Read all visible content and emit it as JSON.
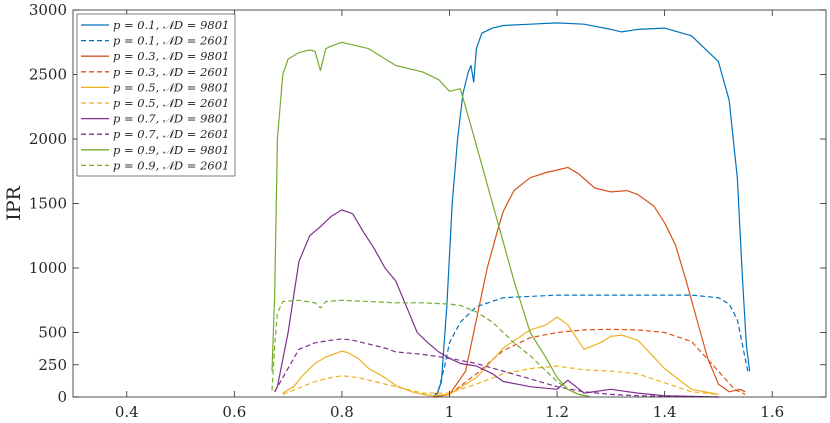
{
  "chart_data": {
    "type": "line",
    "title": "",
    "xlabel": "",
    "ylabel": "IPR",
    "xlim": [
      0.3,
      1.7
    ],
    "ylim": [
      0,
      3000
    ],
    "x_ticks": [
      0.4,
      0.6,
      0.8,
      1.0,
      1.2,
      1.4,
      1.6
    ],
    "x_tick_labels": [
      "0.4",
      "0.6",
      "0.8",
      "1",
      "1.2",
      "1.4",
      "1.6"
    ],
    "y_ticks": [
      0,
      250,
      500,
      1000,
      1500,
      2000,
      2500,
      3000
    ],
    "y_tick_labels": [
      "0",
      "250",
      "500",
      "1000",
      "1500",
      "2000",
      "2500",
      "3000"
    ],
    "grid": false,
    "legend_position": "top-left",
    "series": [
      {
        "name": "p = 0.1, 𝒩D = 9801",
        "color": "#0072BD",
        "dash": "solid",
        "x": [
          0.975,
          0.985,
          0.995,
          1.005,
          1.015,
          1.025,
          1.035,
          1.04,
          1.045,
          1.05,
          1.06,
          1.08,
          1.1,
          1.15,
          1.2,
          1.25,
          1.3,
          1.32,
          1.35,
          1.4,
          1.45,
          1.5,
          1.52,
          1.535,
          1.545,
          1.552,
          1.558
        ],
        "y": [
          0,
          120,
          700,
          1500,
          2000,
          2350,
          2520,
          2570,
          2440,
          2700,
          2820,
          2860,
          2880,
          2890,
          2900,
          2890,
          2850,
          2830,
          2850,
          2860,
          2800,
          2600,
          2300,
          1700,
          900,
          400,
          200
        ]
      },
      {
        "name": "p = 0.1, 𝒩D = 2601",
        "color": "#0072BD",
        "dash": "dashed",
        "x": [
          0.97,
          0.98,
          0.99,
          1.0,
          1.02,
          1.05,
          1.1,
          1.2,
          1.3,
          1.4,
          1.45,
          1.5,
          1.52,
          1.535,
          1.545,
          1.552,
          1.556
        ],
        "y": [
          0,
          60,
          220,
          420,
          580,
          700,
          770,
          790,
          790,
          790,
          790,
          770,
          720,
          600,
          400,
          250,
          180
        ]
      },
      {
        "name": "p = 0.3, 𝒩D = 9801",
        "color": "#D95319",
        "dash": "solid",
        "x": [
          0.97,
          1.0,
          1.03,
          1.05,
          1.07,
          1.09,
          1.1,
          1.12,
          1.15,
          1.18,
          1.2,
          1.22,
          1.24,
          1.27,
          1.3,
          1.33,
          1.35,
          1.38,
          1.4,
          1.42,
          1.44,
          1.46,
          1.48,
          1.5,
          1.52,
          1.54,
          1.55
        ],
        "y": [
          0,
          20,
          200,
          600,
          1000,
          1300,
          1440,
          1600,
          1700,
          1740,
          1760,
          1780,
          1730,
          1620,
          1590,
          1600,
          1570,
          1480,
          1350,
          1180,
          900,
          600,
          300,
          100,
          40,
          60,
          40
        ]
      },
      {
        "name": "p = 0.3, 𝒩D = 2601",
        "color": "#D95319",
        "dash": "dashed",
        "x": [
          0.97,
          1.0,
          1.05,
          1.08,
          1.1,
          1.15,
          1.2,
          1.25,
          1.3,
          1.35,
          1.4,
          1.45,
          1.5,
          1.53,
          1.55
        ],
        "y": [
          0,
          20,
          180,
          290,
          360,
          460,
          500,
          520,
          525,
          520,
          500,
          430,
          200,
          60,
          20
        ]
      },
      {
        "name": "p = 0.5, 𝒩D = 9801",
        "color": "#EDB120",
        "dash": "solid",
        "x": [
          0.69,
          0.71,
          0.73,
          0.75,
          0.77,
          0.79,
          0.8,
          0.81,
          0.83,
          0.85,
          0.88,
          0.9,
          0.93,
          0.95,
          0.97,
          1.0,
          1.05,
          1.1,
          1.15,
          1.18,
          1.2,
          1.22,
          1.25,
          1.28,
          1.3,
          1.32,
          1.35,
          1.4,
          1.45,
          1.5
        ],
        "y": [
          30,
          80,
          180,
          260,
          310,
          340,
          355,
          345,
          300,
          220,
          150,
          90,
          40,
          20,
          10,
          20,
          150,
          380,
          520,
          560,
          620,
          560,
          370,
          420,
          470,
          480,
          440,
          220,
          60,
          20
        ]
      },
      {
        "name": "p = 0.5, 𝒩D = 2601",
        "color": "#EDB120",
        "dash": "dashed",
        "x": [
          0.69,
          0.72,
          0.75,
          0.78,
          0.8,
          0.83,
          0.86,
          0.9,
          0.95,
          1.0,
          1.05,
          1.1,
          1.15,
          1.2,
          1.25,
          1.3,
          1.35,
          1.4,
          1.45,
          1.5
        ],
        "y": [
          20,
          70,
          120,
          150,
          165,
          150,
          120,
          80,
          30,
          30,
          100,
          180,
          220,
          240,
          210,
          200,
          180,
          110,
          40,
          20
        ]
      },
      {
        "name": "p = 0.7, 𝒩D = 9801",
        "color": "#7E2F8E",
        "dash": "solid",
        "x": [
          0.675,
          0.68,
          0.7,
          0.72,
          0.74,
          0.76,
          0.78,
          0.8,
          0.82,
          0.84,
          0.86,
          0.88,
          0.9,
          0.92,
          0.94,
          0.96,
          0.98,
          1.0,
          1.02,
          1.05,
          1.08,
          1.1,
          1.15,
          1.2,
          1.22,
          1.25,
          1.3,
          1.35,
          1.4,
          1.5
        ],
        "y": [
          40,
          80,
          500,
          1050,
          1250,
          1320,
          1400,
          1450,
          1420,
          1280,
          1150,
          1000,
          900,
          700,
          500,
          420,
          350,
          300,
          260,
          240,
          180,
          120,
          80,
          60,
          130,
          30,
          60,
          30,
          10,
          0
        ]
      },
      {
        "name": "p = 0.7, 𝒩D = 2601",
        "color": "#7E2F8E",
        "dash": "dashed",
        "x": [
          0.675,
          0.69,
          0.72,
          0.75,
          0.78,
          0.8,
          0.82,
          0.85,
          0.88,
          0.9,
          0.95,
          1.0,
          1.05,
          1.1,
          1.15,
          1.2,
          1.25,
          1.3,
          1.35,
          1.4,
          1.5
        ],
        "y": [
          40,
          150,
          370,
          420,
          440,
          450,
          440,
          410,
          380,
          350,
          330,
          300,
          260,
          200,
          140,
          80,
          40,
          20,
          10,
          5,
          0
        ]
      },
      {
        "name": "p = 0.9, 𝒩D = 9801",
        "color": "#77AC30",
        "dash": "solid",
        "x": [
          0.67,
          0.675,
          0.68,
          0.69,
          0.7,
          0.72,
          0.74,
          0.75,
          0.76,
          0.77,
          0.78,
          0.8,
          0.85,
          0.9,
          0.95,
          0.98,
          1.0,
          1.02,
          1.04,
          1.06,
          1.08,
          1.1,
          1.12,
          1.15,
          1.18,
          1.2,
          1.22,
          1.24,
          1.26
        ],
        "y": [
          200,
          800,
          2000,
          2500,
          2620,
          2670,
          2690,
          2680,
          2530,
          2700,
          2720,
          2750,
          2700,
          2570,
          2520,
          2460,
          2370,
          2390,
          2100,
          1800,
          1500,
          1200,
          900,
          500,
          300,
          150,
          60,
          20,
          5
        ]
      },
      {
        "name": "p = 0.9, 𝒩D = 2601",
        "color": "#77AC30",
        "dash": "dashed",
        "x": [
          0.67,
          0.675,
          0.68,
          0.69,
          0.72,
          0.75,
          0.76,
          0.77,
          0.8,
          0.85,
          0.9,
          0.95,
          1.0,
          1.02,
          1.05,
          1.08,
          1.1,
          1.12,
          1.15,
          1.18,
          1.2,
          1.22,
          1.24,
          1.26
        ],
        "y": [
          50,
          400,
          650,
          740,
          750,
          730,
          690,
          740,
          750,
          740,
          730,
          730,
          720,
          710,
          660,
          580,
          500,
          420,
          320,
          200,
          120,
          60,
          20,
          5
        ]
      }
    ]
  }
}
